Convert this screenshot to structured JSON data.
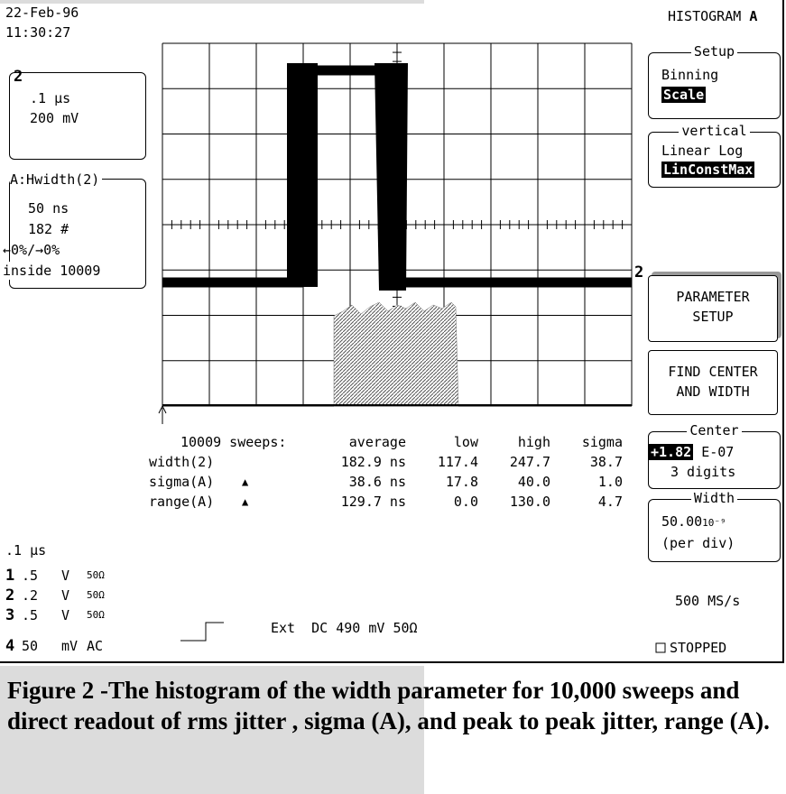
{
  "header": {
    "date": "22-Feb-96",
    "time": "11:30:27",
    "mode": "HISTOGRAM",
    "mode_trace": "A"
  },
  "channel_box": {
    "trace": "2",
    "timebase": ".1 µs",
    "volts": "200 mV"
  },
  "param_box": {
    "title": "A:Hwidth(2)",
    "lines": [
      "50 ns",
      "182 #",
      "←0%/→0%",
      "inside 10009"
    ]
  },
  "trace_marker": "2",
  "menu": {
    "setup": {
      "title": "Setup",
      "options": [
        "Binning",
        "Scale"
      ]
    },
    "vertical": {
      "title": "vertical",
      "options": [
        "Linear Log",
        "LinConstMax"
      ]
    },
    "parameter_setup": [
      "PARAMETER",
      "SETUP"
    ],
    "find_center": [
      "FIND CENTER",
      "AND WIDTH"
    ],
    "center": {
      "title": "Center",
      "value": "+1.82",
      "exponent": "E-07",
      "digits": "3 digits"
    },
    "width": {
      "title": "Width",
      "value": "50.00",
      "unit": "10⁻⁹",
      "note": "(per div)"
    }
  },
  "stats": {
    "sweeps": "10009 sweeps:",
    "columns": [
      "average",
      "low",
      "high",
      "sigma"
    ],
    "rows": [
      {
        "label": "width(2)",
        "flag": "",
        "cells": [
          "182.9 ns",
          "117.4",
          "247.7",
          "38.7"
        ]
      },
      {
        "label": "sigma(A)",
        "flag": "▲",
        "cells": [
          "38.6 ns",
          "17.8",
          "40.0",
          "1.0"
        ]
      },
      {
        "label": "range(A)",
        "flag": "▲",
        "cells": [
          "129.7 ns",
          "0.0",
          "130.0",
          "4.7"
        ]
      }
    ]
  },
  "timebase": ".1 µs",
  "channels": [
    [
      "1",
      ".5",
      "V",
      "50Ω"
    ],
    [
      "2",
      ".2",
      "V",
      "50Ω"
    ],
    [
      "3",
      ".5",
      "V",
      "50Ω"
    ],
    [
      "4",
      "50",
      "mV",
      "AC"
    ]
  ],
  "trigger": "Ext  DC 490 mV 50Ω",
  "sample_rate": "500 MS/s",
  "status": "STOPPED",
  "caption": "Figure 2 -The histogram of the width parameter for 10,000 sweeps and direct readout of rms jitter , sigma (A), and peak to peak jitter, range (A)."
}
